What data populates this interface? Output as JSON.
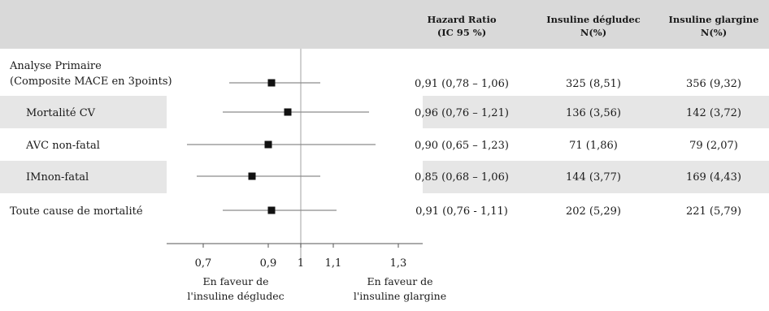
{
  "chart_data": {
    "type": "forest",
    "title": "",
    "headers": {
      "hr": [
        "Hazard Ratio",
        "(IC 95 %)"
      ],
      "degludec": [
        "Insuline dégludec",
        "N(%)"
      ],
      "glargine": [
        "Insuline glargine",
        "N(%)"
      ]
    },
    "rows": [
      {
        "label": [
          "Analyse Primaire",
          "(Composite MACE en 3points)"
        ],
        "hr": 0.91,
        "ci_low": 0.78,
        "ci_high": 1.06,
        "hr_text": "0,91 (0,78 – 1,06)",
        "degludec": "325 (8,51)",
        "glargine": "356 (9,32)",
        "shaded": false,
        "indent": false
      },
      {
        "label": [
          "Mortalité CV"
        ],
        "hr": 0.96,
        "ci_low": 0.76,
        "ci_high": 1.21,
        "hr_text": "0,96 (0,76 – 1,21)",
        "degludec": "136 (3,56)",
        "glargine": "142 (3,72)",
        "shaded": true,
        "indent": true
      },
      {
        "label": [
          "AVC non-fatal"
        ],
        "hr": 0.9,
        "ci_low": 0.65,
        "ci_high": 1.23,
        "hr_text": "0,90 (0,65 – 1,23)",
        "degludec": "71 (1,86)",
        "glargine": "79 (2,07)",
        "shaded": false,
        "indent": true
      },
      {
        "label": [
          "IMnon-fatal"
        ],
        "hr": 0.85,
        "ci_low": 0.68,
        "ci_high": 1.06,
        "hr_text": "0,85 (0,68 – 1,06)",
        "degludec": "144 (3,77)",
        "glargine": "169 (4,43)",
        "shaded": true,
        "indent": true
      },
      {
        "label": [
          "Toute cause de mortalité"
        ],
        "hr": 0.91,
        "ci_low": 0.76,
        "ci_high": 1.11,
        "hr_text": "0,91 (0,76 - 1,11)",
        "degludec": "202 (5,29)",
        "glargine": "221 (5,79)",
        "shaded": false,
        "indent": false
      }
    ],
    "x_ticks": [
      0.7,
      0.9,
      1,
      1.1,
      1.3
    ],
    "x_tick_labels": [
      "0,7",
      "0,9",
      "1",
      "1,1",
      "1,3"
    ],
    "xlim": [
      0.58,
      1.35
    ],
    "reference_line": 1,
    "favor_left": [
      "En faveur de",
      "l'insuline dégludec"
    ],
    "favor_right": [
      "En faveur de",
      "l'insuline glargine"
    ],
    "colors": {
      "header_bg": "#d9d9d9",
      "row_shade": "#e6e6e6",
      "ci_line": "#8c8c8c",
      "marker": "#111111",
      "ref_line": "#b0b0b0"
    }
  }
}
